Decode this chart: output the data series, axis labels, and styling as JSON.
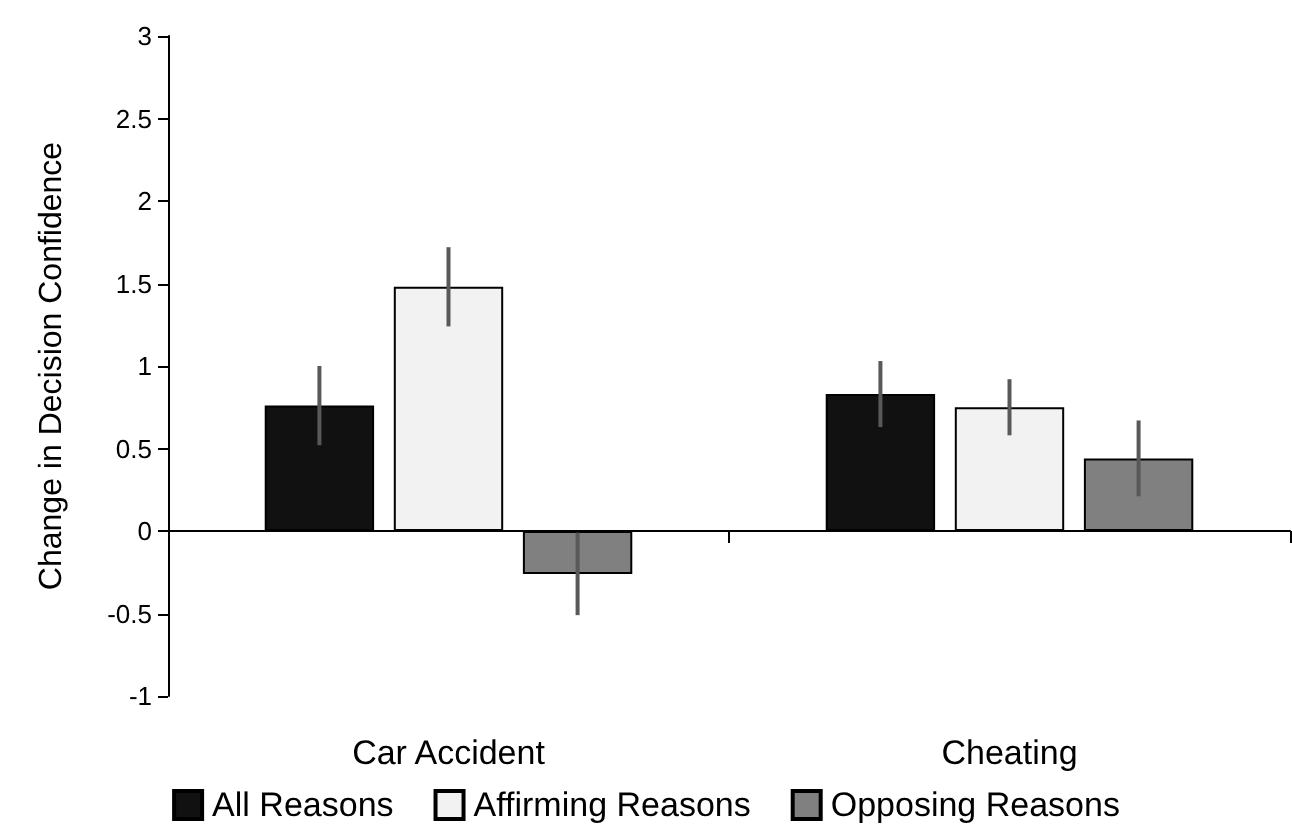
{
  "chart_data": {
    "type": "bar",
    "ylabel": "Change in Decision Confidence",
    "categories": [
      "Car Accident",
      "Cheating"
    ],
    "series": [
      {
        "name": "All Reasons",
        "color": "#111111",
        "values": [
          0.76,
          0.83
        ],
        "errors": [
          0.24,
          0.2
        ]
      },
      {
        "name": "Affirming Reasons",
        "color": "#f2f2f2",
        "values": [
          1.48,
          0.75
        ],
        "errors": [
          0.24,
          0.17
        ]
      },
      {
        "name": "Opposing Reasons",
        "color": "#808080",
        "values": [
          -0.26,
          0.44
        ],
        "errors": [
          0.25,
          0.23
        ]
      }
    ],
    "ylim": [
      -1,
      3
    ],
    "yticks": [
      -1,
      -0.5,
      0,
      0.5,
      1,
      1.5,
      2,
      2.5,
      3
    ],
    "legend": "bottom"
  }
}
